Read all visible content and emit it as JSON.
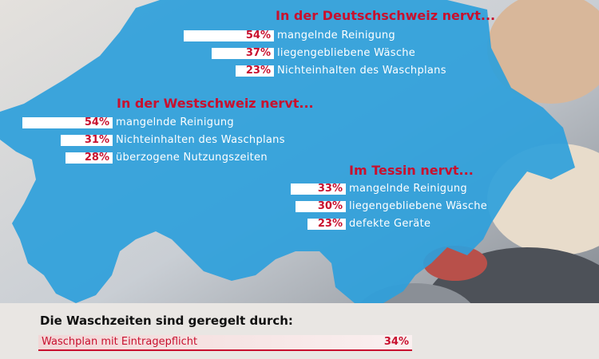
{
  "chart_data": [
    {
      "type": "bar",
      "title": "In der Deutschschweiz nervt...",
      "categories": [
        "mangelnde Reinigung",
        "liegengebliebene Wäsche",
        "Nichteinhalten des Waschplans"
      ],
      "value_labels": [
        "54%",
        "37%",
        "23%"
      ],
      "values": [
        54,
        37,
        23
      ]
    },
    {
      "type": "bar",
      "title": "In der Westschweiz nervt...",
      "categories": [
        "mangelnde Reinigung",
        "Nichteinhalten des Waschplans",
        "überzogene Nutzungszeiten"
      ],
      "value_labels": [
        "54%",
        "31%",
        "28%"
      ],
      "values": [
        54,
        31,
        28
      ]
    },
    {
      "type": "bar",
      "title": "Im Tessin nervt...",
      "categories": [
        "mangelnde Reinigung",
        "liegengebliebene Wäsche",
        "defekte Geräte"
      ],
      "value_labels": [
        "33%",
        "30%",
        "23%"
      ],
      "values": [
        33,
        30,
        23
      ]
    },
    {
      "type": "bar",
      "title": "Die Waschzeiten sind geregelt durch:",
      "categories": [
        "Waschplan mit Eintragepflicht"
      ],
      "value_labels": [
        "34%"
      ],
      "values": [
        34
      ]
    }
  ],
  "colors": {
    "map": "#2e9fd9",
    "accent": "#c8102e",
    "bar": "#ffffff"
  }
}
